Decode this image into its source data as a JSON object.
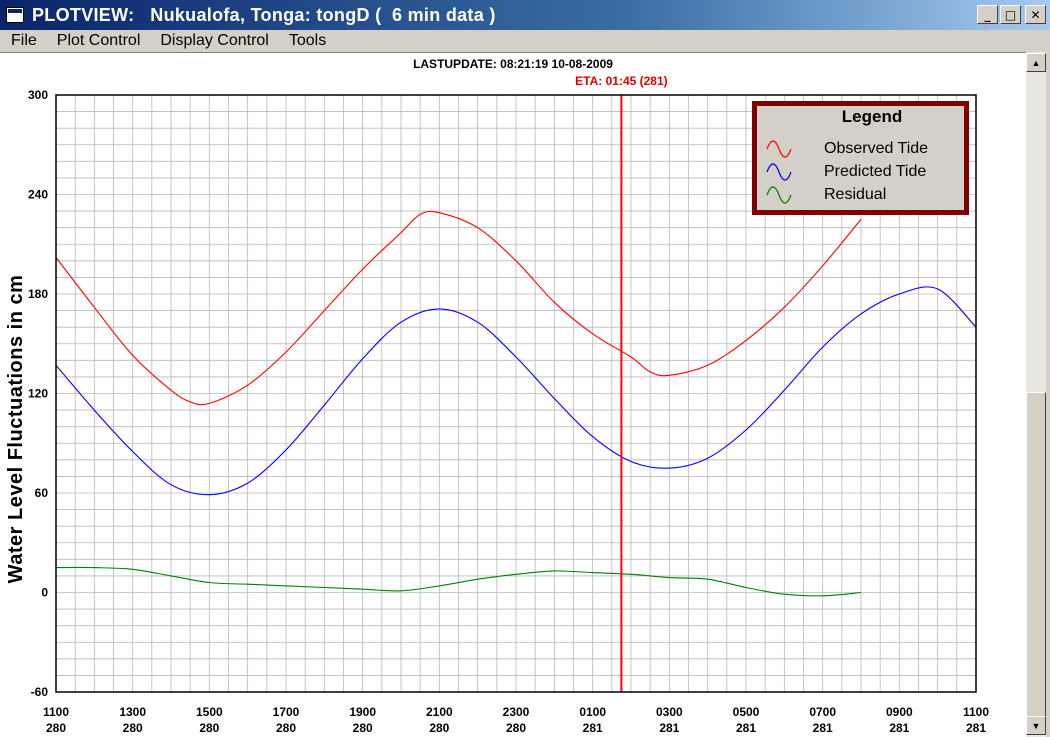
{
  "window": {
    "title": "PLOTVIEW:   Nukualofa, Tonga: tongD (  6 min data )",
    "buttons": {
      "minimize": "_",
      "maximize": "□",
      "close": "✕"
    }
  },
  "menu": {
    "items": [
      "File",
      "Plot Control",
      "Display Control",
      "Tools"
    ]
  },
  "scrollbar": {
    "up_arrow": "▲",
    "down_arrow": "▼"
  },
  "plot": {
    "last_update": "LASTUPDATE: 08:21:19  10-08-2009",
    "eta_label": "ETA: 01:45 (281)",
    "colors": {
      "observed": "#ff0000",
      "predicted": "#0000ff",
      "residual": "#008000",
      "eta": "#ff0000",
      "legend_border": "#800000"
    }
  },
  "chart_data": {
    "type": "line",
    "ylabel": "Water Level Fluctuations in cm",
    "ylim": [
      -60,
      300
    ],
    "yticks": [
      -60,
      0,
      60,
      120,
      180,
      240,
      300
    ],
    "xlim": [
      0,
      24
    ],
    "xtick_positions": [
      0,
      2,
      4,
      6,
      8,
      10,
      12,
      14,
      16,
      18,
      20,
      22,
      24
    ],
    "xtick_labels": [
      [
        "1100",
        "280"
      ],
      [
        "1300",
        "280"
      ],
      [
        "1500",
        "280"
      ],
      [
        "1700",
        "280"
      ],
      [
        "1900",
        "280"
      ],
      [
        "2100",
        "280"
      ],
      [
        "2300",
        "280"
      ],
      [
        "0100",
        "281"
      ],
      [
        "0300",
        "281"
      ],
      [
        "0500",
        "281"
      ],
      [
        "0700",
        "281"
      ],
      [
        "0900",
        "281"
      ],
      [
        "1100",
        "281"
      ]
    ],
    "grid": true,
    "legend": {
      "title": "Legend",
      "position": "top-right"
    },
    "eta_x": 14.75,
    "series": [
      {
        "name": "Observed Tide",
        "color": "#ff0000",
        "x": [
          0,
          1,
          2,
          3,
          3.5,
          4,
          5,
          6,
          7,
          8,
          9,
          9.5,
          10,
          11,
          12,
          13,
          14,
          15,
          15.5,
          16,
          17,
          18,
          19,
          20,
          21
        ],
        "y": [
          202,
          172,
          143,
          122,
          115,
          114,
          125,
          145,
          170,
          195,
          217,
          228,
          229,
          220,
          200,
          175,
          156,
          142,
          133,
          131,
          137,
          152,
          172,
          197,
          225
        ]
      },
      {
        "name": "Predicted Tide",
        "color": "#0000ff",
        "x": [
          0,
          1,
          2,
          3,
          4,
          5,
          6,
          7,
          8,
          9,
          10,
          11,
          12,
          13,
          14,
          15,
          16,
          17,
          18,
          19,
          20,
          21,
          22,
          23,
          24
        ],
        "y": [
          137,
          110,
          85,
          65,
          59,
          66,
          86,
          113,
          141,
          163,
          171,
          163,
          142,
          117,
          94,
          79,
          75,
          81,
          98,
          122,
          148,
          168,
          180,
          183,
          160
        ]
      },
      {
        "name": "Residual",
        "color": "#008000",
        "x": [
          0,
          1,
          2,
          3,
          4,
          5,
          6,
          7,
          8,
          9,
          10,
          11,
          12,
          13,
          14,
          15,
          16,
          17,
          18,
          19,
          20,
          21
        ],
        "y": [
          15,
          15,
          14,
          10,
          6,
          5,
          4,
          3,
          2,
          1,
          4,
          8,
          11,
          13,
          12,
          11,
          9,
          8,
          3,
          -1,
          -2,
          0
        ]
      }
    ]
  }
}
